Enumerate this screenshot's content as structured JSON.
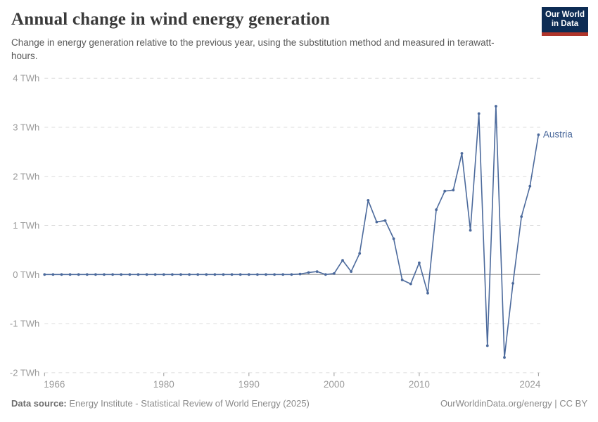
{
  "header": {
    "title": "Annual change in wind energy generation",
    "subtitle": "Change in energy generation relative to the previous year, using the substitution method and measured in terawatt-hours.",
    "logo": {
      "line1": "Our World",
      "line2": "in Data",
      "bg_color": "#0d2c54",
      "accent_color": "#b0352b"
    }
  },
  "footer": {
    "source_label": "Data source:",
    "source_text": " Energy Institute - Statistical Review of World Energy (2025)",
    "right_text": "OurWorldinData.org/energy | CC BY"
  },
  "chart_data": {
    "type": "line",
    "title": "Annual change in wind energy generation",
    "unit": "TWh",
    "x": [
      1966,
      1967,
      1968,
      1969,
      1970,
      1971,
      1972,
      1973,
      1974,
      1975,
      1976,
      1977,
      1978,
      1979,
      1980,
      1981,
      1982,
      1983,
      1984,
      1985,
      1986,
      1987,
      1988,
      1989,
      1990,
      1991,
      1992,
      1993,
      1994,
      1995,
      1996,
      1997,
      1998,
      1999,
      2000,
      2001,
      2002,
      2003,
      2004,
      2005,
      2006,
      2007,
      2008,
      2009,
      2010,
      2011,
      2012,
      2013,
      2014,
      2015,
      2016,
      2017,
      2018,
      2019,
      2020,
      2021,
      2022,
      2023,
      2024
    ],
    "series": [
      {
        "name": "Austria",
        "color": "#4C6A9C",
        "values": [
          0,
          0,
          0,
          0,
          0,
          0,
          0,
          0,
          0,
          0,
          0,
          0,
          0,
          0,
          0,
          0,
          0,
          0,
          0,
          0,
          0,
          0,
          0,
          0,
          0,
          0,
          0,
          0,
          0,
          0,
          0.01,
          0.04,
          0.06,
          0,
          0.02,
          0.29,
          0.06,
          0.43,
          1.51,
          1.07,
          1.1,
          0.73,
          -0.11,
          -0.19,
          0.24,
          -0.38,
          1.32,
          1.7,
          1.72,
          2.47,
          0.9,
          3.28,
          -1.45,
          3.43,
          -1.69,
          -0.18,
          1.18,
          1.8,
          2.85
        ]
      }
    ],
    "ylim": [
      -2,
      4
    ],
    "yticks": [
      {
        "value": 4,
        "label": "4 TWh"
      },
      {
        "value": 3,
        "label": "3 TWh"
      },
      {
        "value": 2,
        "label": "2 TWh"
      },
      {
        "value": 1,
        "label": "1 TWh"
      },
      {
        "value": 0,
        "label": "0 TWh"
      },
      {
        "value": -1,
        "label": "-1 TWh"
      },
      {
        "value": -2,
        "label": "-2 TWh"
      }
    ],
    "xticks": [
      1966,
      1980,
      1990,
      2000,
      2010,
      2024
    ],
    "grid": "horizontal-dashed",
    "zero_line": true,
    "legend_position": "end-of-line",
    "colors": {
      "gridline": "#dcdcdc",
      "zero_line": "#8c8c8c",
      "tick_label": "#9a9a9a",
      "tick_mark": "#9a9a9a"
    }
  }
}
